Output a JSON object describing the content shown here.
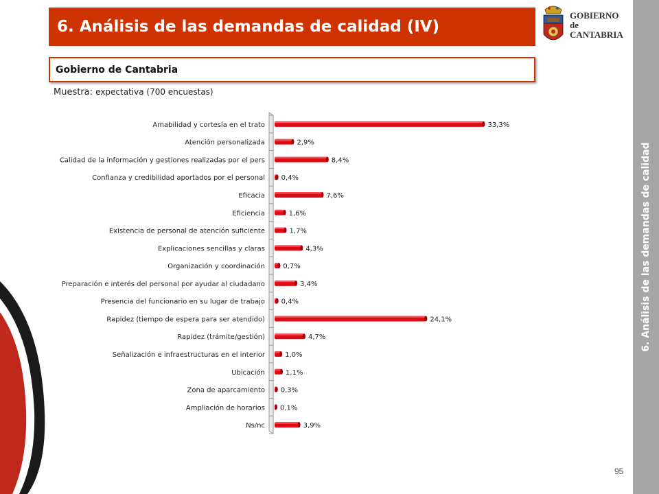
{
  "header": {
    "title": "6. Análisis de las demandas de calidad (IV)",
    "logo_text": [
      "GOBIERNO",
      "de",
      "CANTABRIA"
    ]
  },
  "subtitle": "Gobierno de Cantabria",
  "sample": {
    "prefix": "Muestra:",
    "text": "expectativa (700 encuestas)"
  },
  "sidebar_text": "6. Análisis de las demandas de calidad",
  "page_number": "95",
  "colors": {
    "accent": "#cc3300",
    "bar": "#dd0c14",
    "side_band": "#a6a6a6"
  },
  "chart_data": {
    "type": "bar",
    "orientation": "horizontal",
    "title": "",
    "xlabel": "",
    "ylabel": "",
    "xlim": [
      0,
      35
    ],
    "grid": false,
    "legend": "none",
    "categories": [
      "Amabilidad y cortesía en el trato",
      "Atención personalizada",
      "Calidad de la información y gestiones realizadas por el pers",
      "Confianza y credibilidad aportados por el personal",
      "Eficacia",
      "Eficiencia",
      "Existencia de personal de atención suficiente",
      "Explicaciones sencillas y claras",
      "Organización y coordinación",
      "Preparación e interés del personal por ayudar al ciudadano",
      "Presencia del funcionario en su lugar de trabajo",
      "Rapidez (tiempo de espera para ser atendido)",
      "Rapidez (trámite/gestión)",
      "Señalización e infraestructuras en el interior",
      "Ubicación",
      "Zona de aparcamiento",
      "Ampliación de horarios",
      "Ns/nc"
    ],
    "values": [
      33.3,
      2.9,
      8.4,
      0.4,
      7.6,
      1.6,
      1.7,
      4.3,
      0.7,
      3.4,
      0.4,
      24.1,
      4.7,
      1.0,
      1.1,
      0.3,
      0.1,
      3.9
    ],
    "data_labels": [
      "33,3%",
      "2,9%",
      "8,4%",
      "0,4%",
      "7,6%",
      "1,6%",
      "1,7%",
      "4,3%",
      "0,7%",
      "3,4%",
      "0,4%",
      "24,1%",
      "4,7%",
      "1,0%",
      "1,1%",
      "0,3%",
      "0,1%",
      "3,9%"
    ]
  }
}
